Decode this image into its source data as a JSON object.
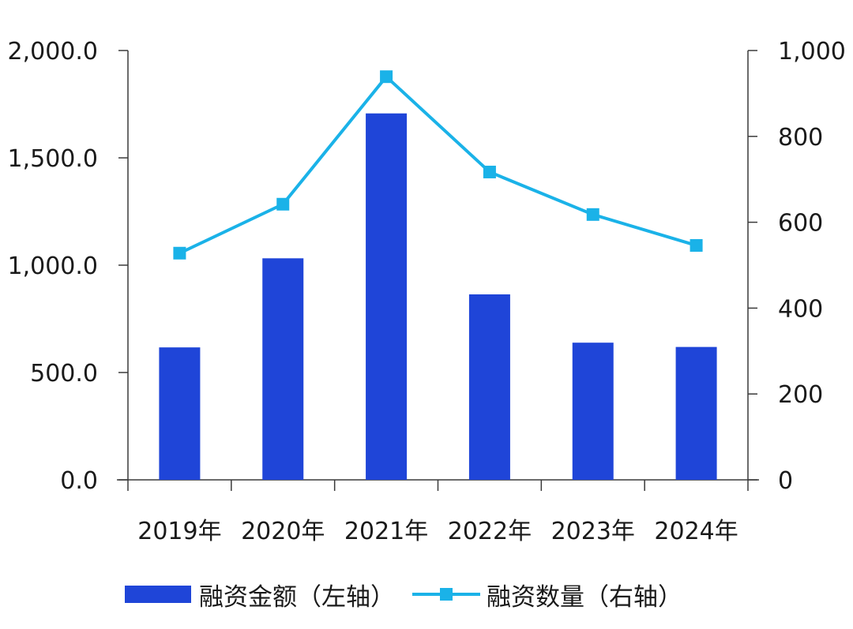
{
  "chart_data": {
    "type": "bar",
    "categories": [
      "2019年",
      "2020年",
      "2021年",
      "2022年",
      "2023年",
      "2024年"
    ],
    "series": [
      {
        "name": "融资金额（左轴）",
        "type": "bar",
        "axis": "left",
        "color": "#1f45d8",
        "values": [
          617,
          1032,
          1707,
          864,
          639,
          619
        ]
      },
      {
        "name": "融资数量（右轴）",
        "type": "line",
        "axis": "right",
        "marker": "square",
        "color": "#1ab2e8",
        "values": [
          528,
          642,
          939,
          717,
          618,
          546
        ]
      }
    ],
    "y_left": {
      "range": [
        0,
        2000
      ],
      "ticks": [
        "0.0",
        "500.0",
        "1,000.0",
        "1,500.0",
        "2,000.0"
      ],
      "tick_values": [
        0,
        500,
        1000,
        1500,
        2000
      ]
    },
    "y_right": {
      "range": [
        0,
        1000
      ],
      "ticks": [
        "0",
        "200",
        "400",
        "600",
        "800",
        "1,000"
      ],
      "tick_values": [
        0,
        200,
        400,
        600,
        800,
        1000
      ]
    },
    "grid": false,
    "legend_position": "bottom"
  }
}
